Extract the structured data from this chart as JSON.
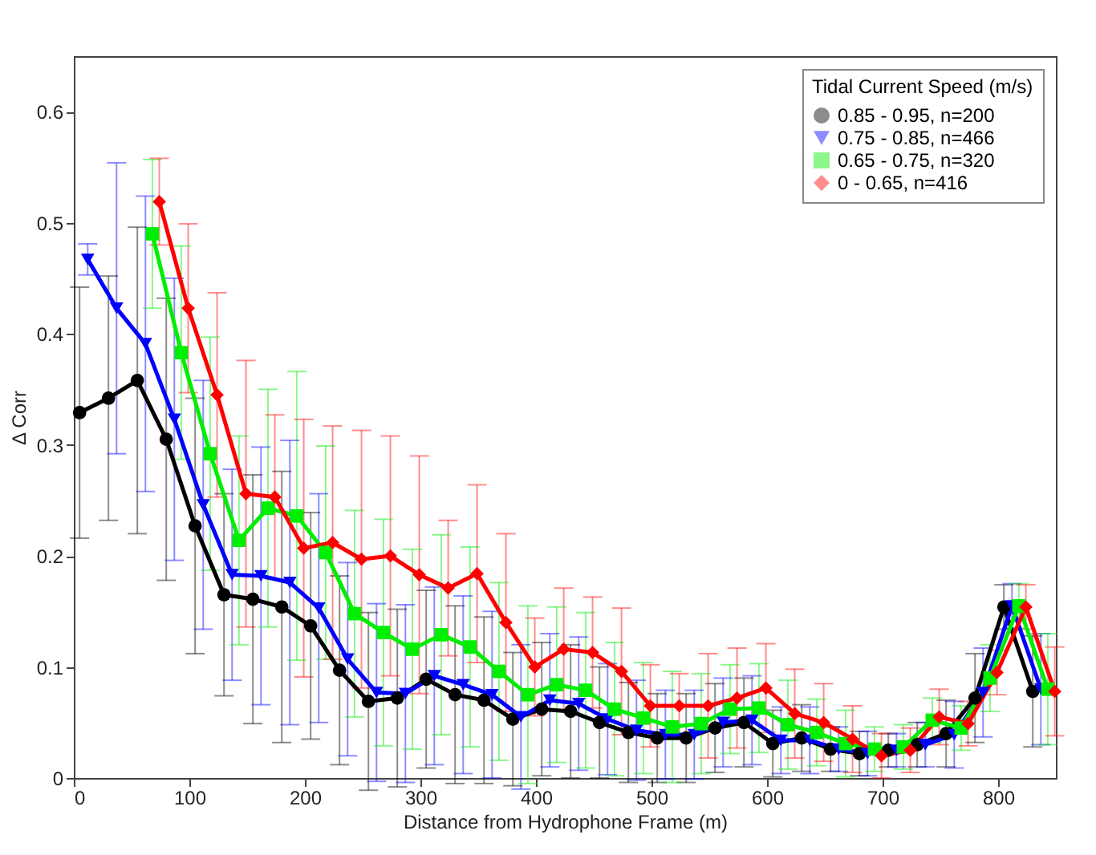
{
  "chart_data": {
    "type": "line",
    "xlabel": "Distance from Hydrophone Frame (m)",
    "ylabel": "Δ Corr",
    "legend_title": "Tidal Current Speed (m/s)",
    "xlim": [
      0,
      850
    ],
    "xticks": [
      0,
      100,
      200,
      300,
      400,
      500,
      600,
      700,
      800
    ],
    "ylim": [
      0,
      0.65
    ],
    "yticks": [
      0,
      0.1,
      0.2,
      0.3,
      0.4,
      0.5,
      0.6
    ],
    "grid": false,
    "legend": "top right",
    "line_style": "solid",
    "series": [
      {
        "name": "0.85 - 0.95, n=200",
        "color": "#000000",
        "marker": "circle",
        "x": [
          5,
          30,
          55,
          80,
          105,
          130,
          155,
          180,
          205,
          230,
          255,
          280,
          305,
          330,
          355,
          380,
          405,
          430,
          455,
          480,
          505,
          530,
          555,
          580,
          605,
          630,
          655,
          680,
          705,
          730,
          755,
          780,
          805,
          830
        ],
        "values": [
          0.329,
          0.342,
          0.358,
          0.305,
          0.227,
          0.165,
          0.161,
          0.154,
          0.137,
          0.097,
          0.069,
          0.072,
          0.089,
          0.075,
          0.07,
          0.053,
          0.062,
          0.06,
          0.05,
          0.041,
          0.036,
          0.036,
          0.045,
          0.05,
          0.031,
          0.036,
          0.026,
          0.022,
          0.025,
          0.03,
          0.04,
          0.072,
          0.154,
          0.078
        ],
        "errors": [
          0.113,
          0.11,
          0.138,
          0.127,
          0.115,
          0.091,
          0.112,
          0.122,
          0.102,
          0.085,
          0.08,
          0.08,
          0.08,
          0.08,
          0.075,
          0.06,
          0.06,
          0.06,
          0.05,
          0.045,
          0.04,
          0.04,
          0.04,
          0.04,
          0.03,
          0.03,
          0.02,
          0.02,
          0.015,
          0.02,
          0.03,
          0.04,
          0.02,
          0.05
        ]
      },
      {
        "name": "0.75 - 0.85, n=466",
        "color": "#0000ff",
        "marker": "triangle",
        "x": [
          12,
          37,
          62,
          87,
          112,
          137,
          162,
          187,
          212,
          237,
          262,
          287,
          312,
          337,
          362,
          387,
          412,
          437,
          462,
          487,
          512,
          537,
          562,
          587,
          612,
          637,
          662,
          687,
          712,
          737,
          762,
          787,
          812,
          837
        ],
        "values": [
          0.467,
          0.423,
          0.391,
          0.323,
          0.246,
          0.183,
          0.182,
          0.176,
          0.153,
          0.107,
          0.077,
          0.076,
          0.092,
          0.084,
          0.075,
          0.055,
          0.07,
          0.067,
          0.053,
          0.043,
          0.039,
          0.039,
          0.05,
          0.052,
          0.034,
          0.034,
          0.026,
          0.022,
          0.025,
          0.03,
          0.039,
          0.077,
          0.155,
          0.08
        ],
        "errors": [
          0.014,
          0.131,
          0.133,
          0.127,
          0.112,
          0.095,
          0.116,
          0.128,
          0.103,
          0.087,
          0.08,
          0.08,
          0.08,
          0.08,
          0.075,
          0.065,
          0.06,
          0.06,
          0.05,
          0.045,
          0.04,
          0.04,
          0.04,
          0.04,
          0.03,
          0.03,
          0.02,
          0.02,
          0.015,
          0.02,
          0.03,
          0.04,
          0.02,
          0.05
        ]
      },
      {
        "name": "0.65 - 0.75, n=320",
        "color": "#00ee00",
        "marker": "square",
        "x": [
          68,
          93,
          118,
          143,
          168,
          193,
          218,
          243,
          268,
          293,
          318,
          343,
          368,
          393,
          418,
          443,
          468,
          493,
          518,
          543,
          568,
          593,
          618,
          643,
          668,
          693,
          718,
          743,
          768,
          793,
          818,
          843
        ],
        "values": [
          0.49,
          0.383,
          0.292,
          0.214,
          0.243,
          0.236,
          0.203,
          0.148,
          0.131,
          0.116,
          0.129,
          0.118,
          0.096,
          0.075,
          0.084,
          0.079,
          0.062,
          0.054,
          0.046,
          0.049,
          0.062,
          0.063,
          0.048,
          0.041,
          0.031,
          0.026,
          0.028,
          0.052,
          0.045,
          0.09,
          0.155,
          0.08
        ],
        "errors": [
          0.067,
          0.096,
          0.105,
          0.094,
          0.107,
          0.13,
          0.096,
          0.093,
          0.102,
          0.09,
          0.09,
          0.09,
          0.08,
          0.08,
          0.07,
          0.07,
          0.06,
          0.05,
          0.05,
          0.045,
          0.04,
          0.04,
          0.04,
          0.03,
          0.03,
          0.02,
          0.02,
          0.02,
          0.02,
          0.03,
          0.02,
          0.05
        ]
      },
      {
        "name": "0 - 0.65, n=416",
        "color": "#ff0000",
        "marker": "diamond",
        "x": [
          74,
          99,
          124,
          149,
          174,
          199,
          224,
          249,
          274,
          299,
          324,
          349,
          374,
          399,
          424,
          449,
          474,
          499,
          524,
          549,
          574,
          599,
          624,
          649,
          674,
          699,
          724,
          749,
          774,
          799,
          824,
          849
        ],
        "values": [
          0.519,
          0.423,
          0.345,
          0.256,
          0.253,
          0.207,
          0.212,
          0.197,
          0.2,
          0.183,
          0.171,
          0.184,
          0.14,
          0.1,
          0.116,
          0.113,
          0.096,
          0.065,
          0.065,
          0.065,
          0.072,
          0.081,
          0.058,
          0.05,
          0.035,
          0.02,
          0.025,
          0.055,
          0.049,
          0.095,
          0.154,
          0.078
        ],
        "errors": [
          0.039,
          0.076,
          0.092,
          0.12,
          0.074,
          0.116,
          0.105,
          0.116,
          0.108,
          0.107,
          0.061,
          0.08,
          0.08,
          0.044,
          0.055,
          0.05,
          0.057,
          0.037,
          0.029,
          0.047,
          0.045,
          0.04,
          0.04,
          0.035,
          0.03,
          0.02,
          0.02,
          0.025,
          0.02,
          0.02,
          0.02,
          0.04
        ]
      }
    ]
  }
}
